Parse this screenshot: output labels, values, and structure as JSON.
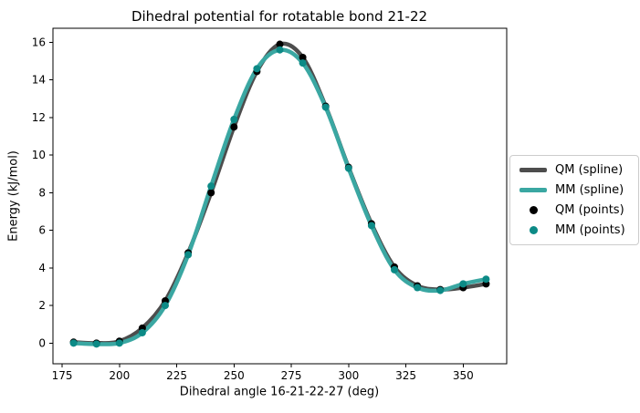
{
  "title": "Dihedral potential for rotatable bond 21-22",
  "axes": {
    "xlabel": "Dihedral angle 16-21-22-27 (deg)",
    "ylabel": "Energy (kJ/mol)"
  },
  "legend": {
    "position": "center-right-outside",
    "items": [
      {
        "label": "QM (spline)",
        "type": "line",
        "color": "#4d4d4d"
      },
      {
        "label": "MM (spline)",
        "type": "line",
        "color": "#3aa7a2"
      },
      {
        "label": "QM (points)",
        "type": "dot",
        "color": "#000000"
      },
      {
        "label": "MM (points)",
        "type": "dot",
        "color": "#0c8a86"
      }
    ]
  },
  "chart_data": {
    "type": "line",
    "title": "Dihedral potential for rotatable bond 21-22",
    "xlabel": "Dihedral angle 16-21-22-27 (deg)",
    "ylabel": "Energy (kJ/mol)",
    "grid": false,
    "x": [
      180,
      190,
      200,
      210,
      220,
      230,
      240,
      250,
      260,
      270,
      280,
      290,
      300,
      310,
      320,
      330,
      340,
      350,
      360
    ],
    "series": [
      {
        "name": "QM (spline)",
        "style": "spline",
        "color": "#4d4d4d",
        "values": [
          0.05,
          0.0,
          0.1,
          0.8,
          2.25,
          4.8,
          8.0,
          11.5,
          14.45,
          15.9,
          15.2,
          12.6,
          9.35,
          6.35,
          4.05,
          3.05,
          2.85,
          2.95,
          3.15
        ]
      },
      {
        "name": "MM (spline)",
        "style": "spline",
        "color": "#3aa7a2",
        "values": [
          0.0,
          -0.05,
          0.0,
          0.55,
          2.0,
          4.7,
          8.35,
          11.9,
          14.6,
          15.6,
          14.9,
          12.55,
          9.3,
          6.25,
          3.9,
          2.95,
          2.8,
          3.15,
          3.4
        ]
      },
      {
        "name": "QM (points)",
        "style": "points",
        "color": "#000000",
        "values": [
          0.05,
          0.0,
          0.1,
          0.8,
          2.25,
          4.8,
          8.0,
          11.5,
          14.45,
          15.9,
          15.2,
          12.6,
          9.35,
          6.35,
          4.05,
          3.05,
          2.85,
          2.95,
          3.15
        ]
      },
      {
        "name": "MM (points)",
        "style": "points",
        "color": "#0c8a86",
        "values": [
          0.0,
          -0.05,
          0.0,
          0.55,
          2.0,
          4.7,
          8.35,
          11.9,
          14.6,
          15.6,
          14.9,
          12.55,
          9.3,
          6.25,
          3.9,
          2.95,
          2.8,
          3.15,
          3.4
        ]
      }
    ],
    "xlim": [
      171,
      369
    ],
    "ylim": [
      -1.1,
      16.75
    ],
    "xticks": [
      175,
      200,
      225,
      250,
      275,
      300,
      325,
      350
    ],
    "yticks": [
      0,
      2,
      4,
      6,
      8,
      10,
      12,
      14,
      16
    ],
    "legend_position": "right-outside"
  }
}
